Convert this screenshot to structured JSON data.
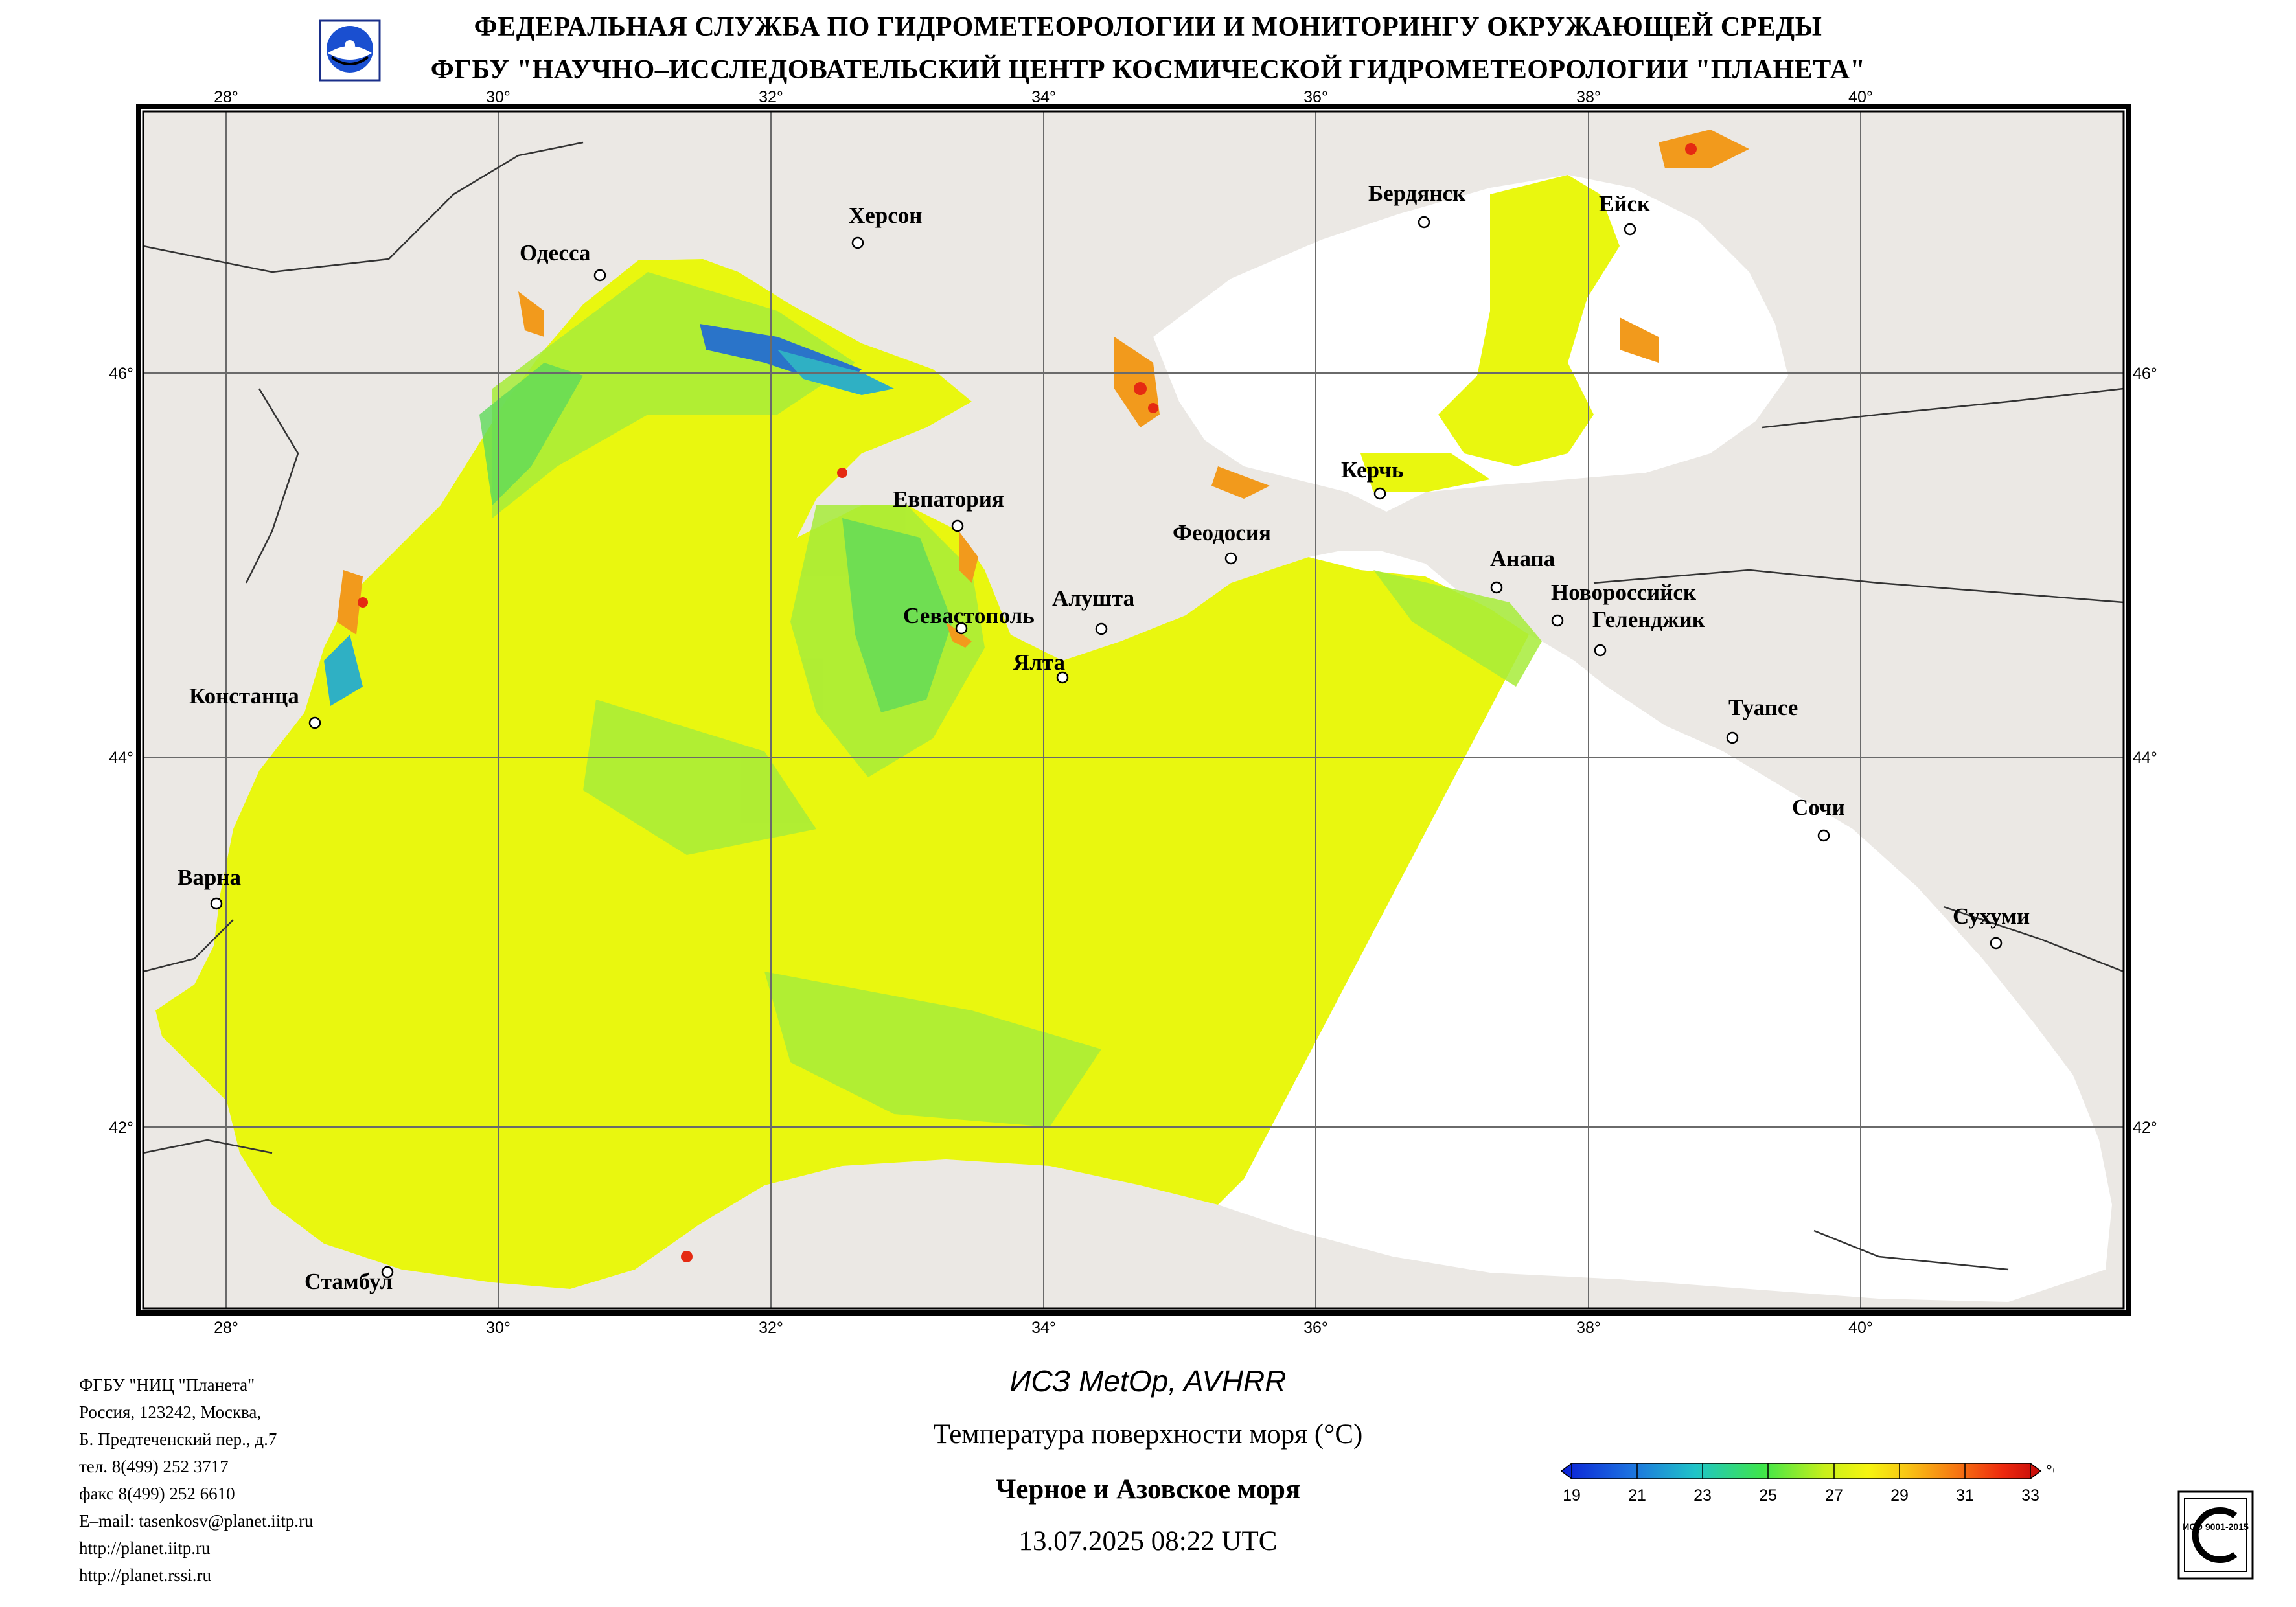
{
  "header": {
    "line1": "ФЕДЕРАЛЬНАЯ СЛУЖБА ПО ГИДРОМЕТЕОРОЛОГИИ И МОНИТОРИНГУ ОКРУЖАЮЩЕЙ СРЕДЫ",
    "line2": "ФГБУ \"НАУЧНО–ИССЛЕДОВАТЕЛЬСКИЙ ЦЕНТР КОСМИЧЕСКОЙ ГИДРОМЕТЕОРОЛОГИИ \"ПЛАНЕТА\"",
    "logo_icon": "planeta-logo-icon"
  },
  "map": {
    "lon_ticks": [
      "28°",
      "30°",
      "32°",
      "34°",
      "36°",
      "38°",
      "40°"
    ],
    "lat_ticks": [
      "46°",
      "44°",
      "42°"
    ],
    "colors": {
      "land": "#ebe8e4",
      "cloud": "#ffffff",
      "sea_main": "#e9f70f",
      "sea_cool": "#8fe645",
      "sea_cold": "#2a74c9",
      "sea_warm": "#f29a1c"
    },
    "cities": [
      {
        "name": "Одесса"
      },
      {
        "name": "Херсон"
      },
      {
        "name": "Бердянск"
      },
      {
        "name": "Ейск"
      },
      {
        "name": "Керчь"
      },
      {
        "name": "Евпатория"
      },
      {
        "name": "Феодосия"
      },
      {
        "name": "Анапа"
      },
      {
        "name": "Новороссийск"
      },
      {
        "name": "Геленджик"
      },
      {
        "name": "Севастополь"
      },
      {
        "name": "Алушта"
      },
      {
        "name": "Ялта"
      },
      {
        "name": "Констанца"
      },
      {
        "name": "Туапсе"
      },
      {
        "name": "Сочи"
      },
      {
        "name": "Варна"
      },
      {
        "name": "Сухуми"
      },
      {
        "name": "Стамбул"
      }
    ]
  },
  "organization": {
    "lines": [
      "ФГБУ \"НИЦ \"Планета\"",
      "Россия, 123242, Москва,",
      "Б. Предтеченский пер., д.7",
      "тел. 8(499) 252 3717",
      "факс 8(499) 252 6610",
      "E–mail: tasenkosv@planet.iitp.ru",
      "http://planet.iitp.ru",
      "http://planet.rssi.ru"
    ]
  },
  "caption": {
    "satellite": "ИСЗ MetOp, AVHRR",
    "product": "Температура поверхности моря (°C)",
    "region": "Черное и Азовское моря",
    "datetime": "13.07.2025 08:22 UTC"
  },
  "colorbar": {
    "unit": "°C",
    "ticks": [
      "19",
      "21",
      "23",
      "25",
      "27",
      "29",
      "31",
      "33"
    ],
    "min": 19,
    "max": 33,
    "colors": [
      "#0a1fd6",
      "#1c6fe0",
      "#1fc4c8",
      "#3ee64a",
      "#c8f01a",
      "#f6f510",
      "#f8c614",
      "#f77a12",
      "#ee2a0e",
      "#c40a0a"
    ]
  },
  "certification": {
    "icon": "iso-certification-stamp-icon",
    "text": "ИСО 9001-2015"
  }
}
